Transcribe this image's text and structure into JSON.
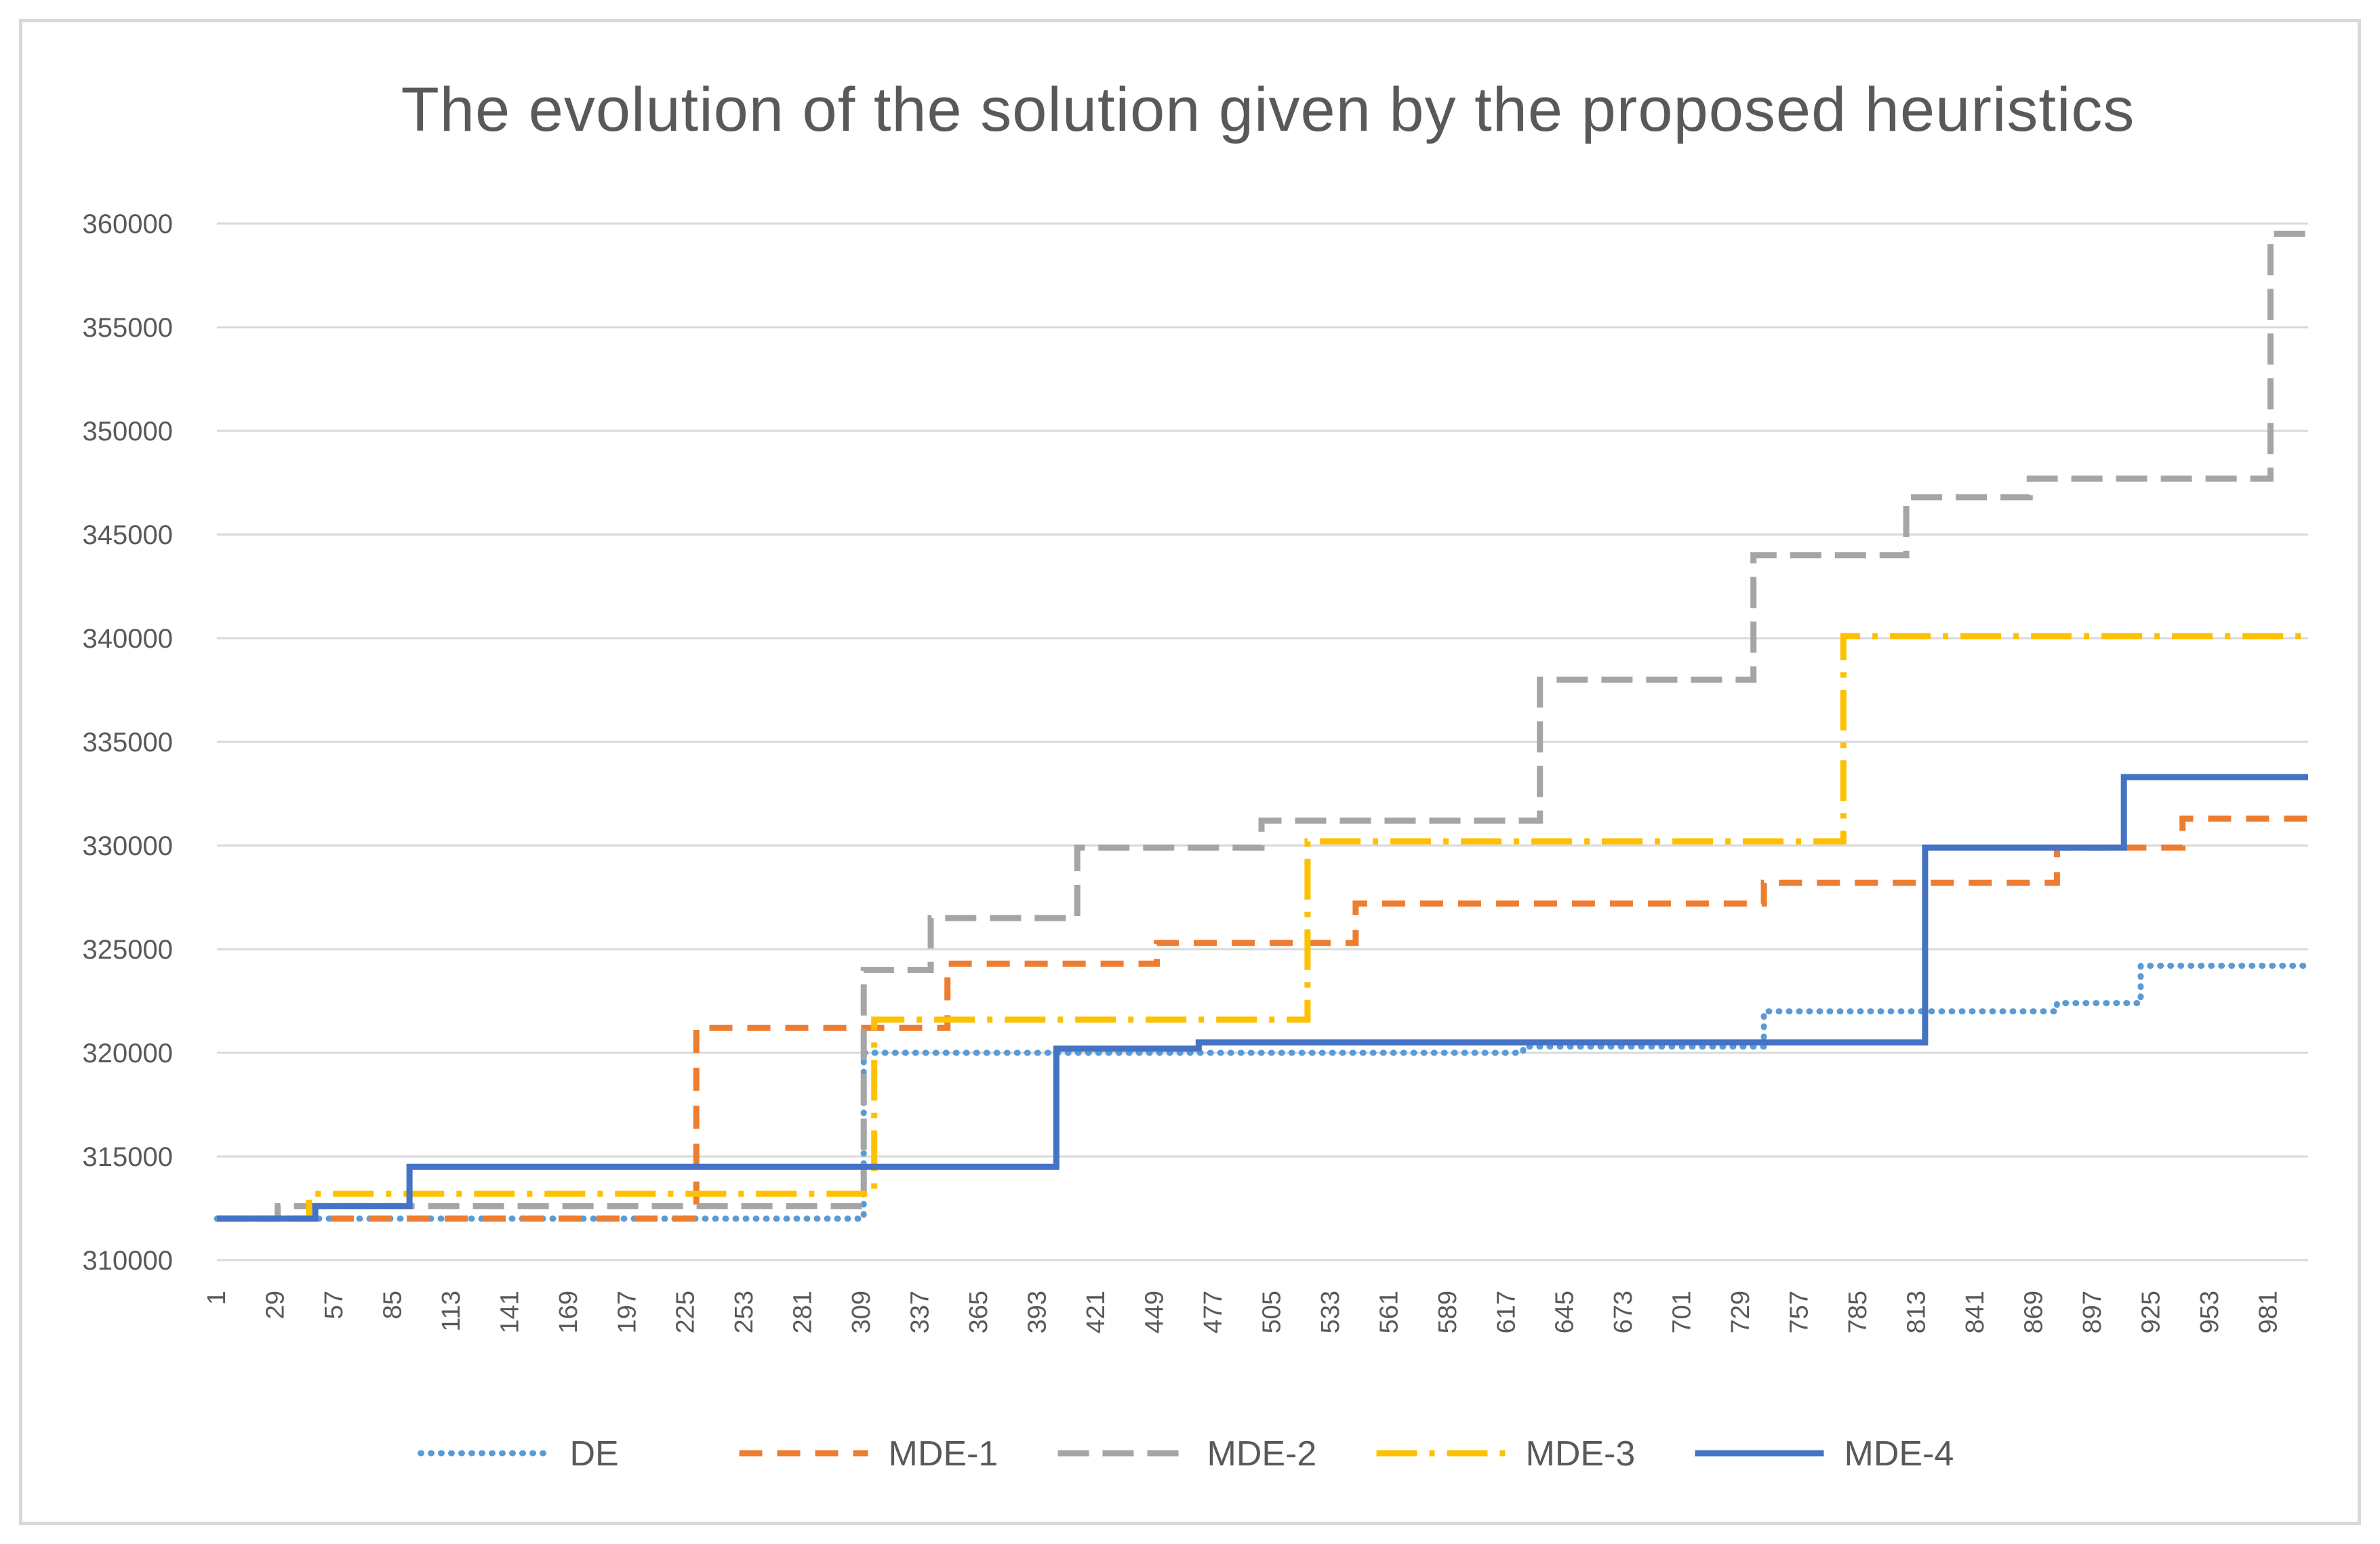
{
  "chart_data": {
    "type": "line",
    "title": "The evolution of the solution given by the proposed heuristics",
    "xlabel": "",
    "ylabel": "",
    "ylim": [
      310000,
      360000
    ],
    "xlim": [
      1,
      1000
    ],
    "y_ticks": [
      "310000",
      "315000",
      "320000",
      "325000",
      "330000",
      "335000",
      "340000",
      "345000",
      "350000",
      "355000",
      "360000"
    ],
    "y_tick_values": [
      310000,
      315000,
      320000,
      325000,
      330000,
      335000,
      340000,
      345000,
      350000,
      355000,
      360000
    ],
    "x_ticks": [
      "1",
      "29",
      "57",
      "85",
      "113",
      "141",
      "169",
      "197",
      "225",
      "253",
      "281",
      "309",
      "337",
      "365",
      "393",
      "421",
      "449",
      "477",
      "505",
      "533",
      "561",
      "589",
      "617",
      "645",
      "673",
      "701",
      "729",
      "757",
      "785",
      "813",
      "841",
      "869",
      "897",
      "925",
      "953",
      "981"
    ],
    "grid": true,
    "legend_position": "bottom",
    "series": [
      {
        "name": "DE",
        "color": "#5B9BD5",
        "dash": "dotted",
        "step_points": [
          [
            1,
            312000
          ],
          [
            310,
            312000
          ],
          [
            310,
            320000
          ],
          [
            625,
            320000
          ],
          [
            625,
            320300
          ],
          [
            740,
            320300
          ],
          [
            740,
            322000
          ],
          [
            880,
            322000
          ],
          [
            880,
            322400
          ],
          [
            920,
            322400
          ],
          [
            920,
            324200
          ],
          [
            1000,
            324200
          ]
        ]
      },
      {
        "name": "MDE-1",
        "color": "#ED7D31",
        "dash": "dashed",
        "step_points": [
          [
            1,
            312000
          ],
          [
            230,
            312000
          ],
          [
            230,
            321200
          ],
          [
            350,
            321200
          ],
          [
            350,
            324300
          ],
          [
            450,
            324300
          ],
          [
            450,
            325300
          ],
          [
            545,
            325300
          ],
          [
            545,
            327200
          ],
          [
            740,
            327200
          ],
          [
            740,
            328200
          ],
          [
            880,
            328200
          ],
          [
            880,
            329900
          ],
          [
            940,
            329900
          ],
          [
            940,
            331300
          ],
          [
            1000,
            331300
          ]
        ]
      },
      {
        "name": "MDE-2",
        "color": "#A5A5A5",
        "dash": "long-dash",
        "step_points": [
          [
            1,
            312000
          ],
          [
            30,
            312000
          ],
          [
            30,
            312600
          ],
          [
            310,
            312600
          ],
          [
            310,
            324000
          ],
          [
            342,
            324000
          ],
          [
            342,
            326500
          ],
          [
            412,
            326500
          ],
          [
            412,
            329900
          ],
          [
            500,
            329900
          ],
          [
            500,
            331200
          ],
          [
            633,
            331200
          ],
          [
            633,
            338000
          ],
          [
            735,
            338000
          ],
          [
            735,
            344000
          ],
          [
            808,
            344000
          ],
          [
            808,
            346800
          ],
          [
            867,
            346800
          ],
          [
            867,
            347700
          ],
          [
            982,
            347700
          ],
          [
            982,
            359500
          ],
          [
            1000,
            359500
          ]
        ]
      },
      {
        "name": "MDE-3",
        "color": "#FFC000",
        "dash": "dash-dot",
        "step_points": [
          [
            1,
            312000
          ],
          [
            45,
            312000
          ],
          [
            45,
            313200
          ],
          [
            315,
            313200
          ],
          [
            315,
            321600
          ],
          [
            522,
            321600
          ],
          [
            522,
            330200
          ],
          [
            778,
            330200
          ],
          [
            778,
            340100
          ],
          [
            1000,
            340100
          ]
        ]
      },
      {
        "name": "MDE-4",
        "color": "#4472C4",
        "dash": "solid",
        "step_points": [
          [
            1,
            312000
          ],
          [
            48,
            312000
          ],
          [
            48,
            312600
          ],
          [
            93,
            312600
          ],
          [
            93,
            314500
          ],
          [
            402,
            314500
          ],
          [
            402,
            320200
          ],
          [
            470,
            320200
          ],
          [
            470,
            320500
          ],
          [
            817,
            320500
          ],
          [
            817,
            329900
          ],
          [
            912,
            329900
          ],
          [
            912,
            333300
          ],
          [
            1000,
            333300
          ]
        ]
      }
    ]
  }
}
